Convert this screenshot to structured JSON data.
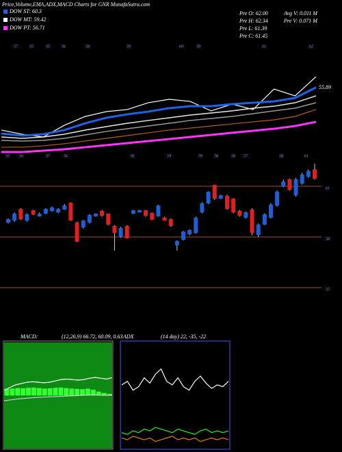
{
  "header": {
    "title": "Price,Volume,EMA,ADX,MACD Charts for GNR MunafaSutra.com",
    "info": [
      "Pre  O: 62.00",
      "Pre  H: 62.34",
      "Pre  L: 61.39",
      "Pre  C: 61.45",
      "Avg  V: 0.011 M",
      "Pre  V: 0.071 M"
    ]
  },
  "chart_data": [
    {
      "type": "line",
      "legend": [
        "DOW ST: 60.3",
        "DOW MT: 59.42",
        "DOW PT: 56.71"
      ],
      "legend_colors": [
        "#1e63e6",
        "#ffffff",
        "#ff33ff"
      ],
      "annotations": [
        "55.89"
      ],
      "top_labels": [
        "57",
        "55",
        "55",
        "56",
        "58",
        "59",
        "60",
        "59",
        "61",
        "62"
      ],
      "bottom_labels": [
        "55",
        "56",
        "57",
        "56",
        "58",
        "59",
        "59",
        "58",
        "58",
        "57",
        "58",
        "61"
      ],
      "ylim": [
        49.5,
        60
      ],
      "series": [
        {
          "color": "#ffffff",
          "width": 1.2,
          "values": [
            51.8,
            51.4,
            51.14,
            52.26,
            53.11,
            53.57,
            53.77,
            54.42,
            54.75,
            54.55,
            53.64,
            54.29,
            53.77,
            55.73,
            55.08,
            56.92
          ]
        },
        {
          "color": "#1e63e6",
          "width": 3,
          "values": [
            51.47,
            51.27,
            51.4,
            51.8,
            52.45,
            52.98,
            53.31,
            53.57,
            53.9,
            54.09,
            54.09,
            54.29,
            54.42,
            54.55,
            54.88,
            55.89
          ]
        },
        {
          "color": "#e8e8e8",
          "width": 1.5,
          "values": [
            51.14,
            51.01,
            51.14,
            51.4,
            51.8,
            52.13,
            52.45,
            52.72,
            52.98,
            53.24,
            53.44,
            53.64,
            53.9,
            54.09,
            54.42,
            55.08
          ]
        },
        {
          "color": "#9a9a9a",
          "width": 1.5,
          "values": [
            50.81,
            50.75,
            50.81,
            51.01,
            51.34,
            51.67,
            51.93,
            52.19,
            52.45,
            52.72,
            52.91,
            53.11,
            53.37,
            53.64,
            53.9,
            54.42
          ]
        },
        {
          "color": "#b4611c",
          "width": 1.2,
          "values": [
            50.16,
            50.16,
            50.29,
            50.49,
            50.75,
            51.01,
            51.27,
            51.54,
            51.8,
            51.99,
            52.19,
            52.39,
            52.59,
            52.78,
            53.11,
            53.77
          ]
        },
        {
          "color": "#ff33ff",
          "width": 3,
          "values": [
            49.7,
            49.7,
            49.83,
            49.96,
            50.16,
            50.35,
            50.55,
            50.75,
            50.94,
            51.14,
            51.34,
            51.54,
            51.73,
            51.93,
            52.19,
            52.59
          ]
        }
      ]
    },
    {
      "type": "candlestick",
      "ylim": [
        52.57,
        62.5
      ],
      "yticks": [
        61,
        58,
        55
      ],
      "up_color": "#1e5fd8",
      "down_color": "#e02020",
      "grid_color": "#a0522d",
      "open": [
        58.85,
        58.97,
        59.66,
        58.97,
        59.58,
        59.22,
        59.38,
        59.54,
        59.46,
        59.62,
        60.03,
        58.85,
        58.57,
        58.85,
        59.22,
        59.54,
        59.38,
        58.65,
        58.0,
        58.65,
        59.38,
        59.46,
        59.58,
        59.42,
        59.22,
        59.14,
        59.05,
        57.51,
        57.84,
        58.16,
        58.24,
        59.46,
        59.99,
        61.08,
        60.27,
        60.43,
        60.27,
        59.54,
        59.14,
        59.62,
        58.12,
        58.73,
        59.14,
        59.86,
        61.0,
        61.41,
        60.47,
        61.16,
        61.57,
        62.0
      ],
      "high": [
        59.1,
        59.45,
        59.7,
        59.4,
        59.6,
        59.45,
        59.7,
        59.8,
        59.7,
        59.95,
        60.05,
        58.9,
        59.0,
        59.35,
        59.4,
        59.6,
        59.4,
        58.7,
        58.6,
        58.7,
        59.6,
        59.6,
        59.6,
        59.45,
        59.9,
        59.2,
        59.1,
        57.8,
        58.35,
        58.45,
        59.2,
        60.05,
        60.7,
        61.1,
        60.5,
        60.5,
        60.3,
        59.6,
        59.5,
        59.7,
        58.8,
        59.4,
        60.0,
        60.75,
        61.4,
        61.45,
        61.5,
        61.8,
        62.0,
        62.34
      ],
      "low": [
        58.8,
        58.9,
        59.0,
        58.9,
        59.3,
        59.2,
        59.35,
        59.5,
        59.4,
        59.6,
        58.95,
        57.7,
        58.5,
        58.8,
        59.2,
        59.2,
        58.7,
        57.19,
        57.95,
        57.9,
        59.35,
        59.45,
        59.2,
        59.0,
        59.2,
        58.95,
        58.6,
        57.2,
        57.8,
        58.1,
        58.2,
        59.4,
        59.95,
        60.2,
        60.25,
        59.6,
        59.4,
        59.2,
        59.1,
        58.1,
        58.0,
        58.7,
        59.1,
        59.8,
        60.95,
        60.75,
        60.4,
        61.1,
        61.5,
        61.39
      ],
      "close": [
        59.05,
        59.38,
        59.05,
        59.34,
        59.34,
        59.38,
        59.66,
        59.74,
        59.66,
        59.86,
        58.97,
        57.72,
        58.97,
        59.3,
        59.38,
        59.26,
        58.73,
        58.24,
        58.53,
        57.92,
        59.58,
        59.58,
        59.26,
        59.01,
        59.86,
        58.97,
        58.65,
        57.76,
        58.32,
        58.41,
        59.14,
        59.99,
        60.68,
        60.27,
        60.47,
        59.66,
        59.46,
        59.26,
        59.46,
        58.24,
        58.73,
        59.34,
        59.91,
        60.68,
        61.28,
        60.8,
        61.41,
        61.69,
        61.89,
        61.45
      ]
    },
    {
      "type": "macd",
      "label": "MACD:",
      "params": "(12,26,9) 66.72, 60.09, 0.63",
      "ylim": [
        40,
        80
      ],
      "y2lim": [
        -20,
        20
      ],
      "background": "#0e8a14",
      "series": [
        {
          "color": "#ffffff",
          "values": [
            62,
            63,
            64,
            64.5,
            65,
            65.2,
            65,
            64.8,
            65,
            65.5,
            66,
            66.2,
            66,
            65.8,
            66,
            66.5,
            66.8,
            66.5,
            66.2,
            66.72
          ]
        },
        {
          "color": "#d0d0d0",
          "values": [
            58,
            58.3,
            58.6,
            58.8,
            59,
            59.2,
            59.3,
            59.4,
            59.5,
            59.6,
            59.7,
            59.8,
            59.9,
            60,
            60.1,
            60.2,
            60.2,
            60.1,
            60.1,
            60.09
          ]
        },
        {
          "color": "#33ff33",
          "axis": "y2",
          "values": [
            2.5,
            2.6,
            2.8,
            2.7,
            2.9,
            3,
            2.8,
            2.6,
            2.7,
            2.9,
            3,
            2.8,
            2.6,
            2.5,
            2.4,
            2.6,
            2.2,
            1.5,
            1.0,
            0.63
          ]
        }
      ]
    },
    {
      "type": "adx",
      "label": "ADX",
      "params": "(14 day) 22, -35, -22",
      "ylim": [
        0,
        60
      ],
      "series": [
        {
          "color": "#ffffff",
          "values": [
            36,
            38,
            33,
            35,
            40,
            37,
            42,
            45,
            38,
            36,
            40,
            35,
            33,
            38,
            41,
            37,
            34,
            36,
            35,
            38
          ]
        },
        {
          "color": "#22ee22",
          "values": [
            9,
            8,
            10,
            9,
            11,
            10,
            12,
            11,
            10,
            9,
            11,
            10,
            9,
            8,
            10,
            11,
            9,
            10,
            9,
            10
          ]
        },
        {
          "color": "#e07a1a",
          "values": [
            6,
            5,
            7,
            6,
            5,
            6,
            4,
            5,
            6,
            7,
            5,
            6,
            5,
            6,
            4,
            5,
            6,
            5,
            6,
            5
          ]
        }
      ]
    }
  ]
}
